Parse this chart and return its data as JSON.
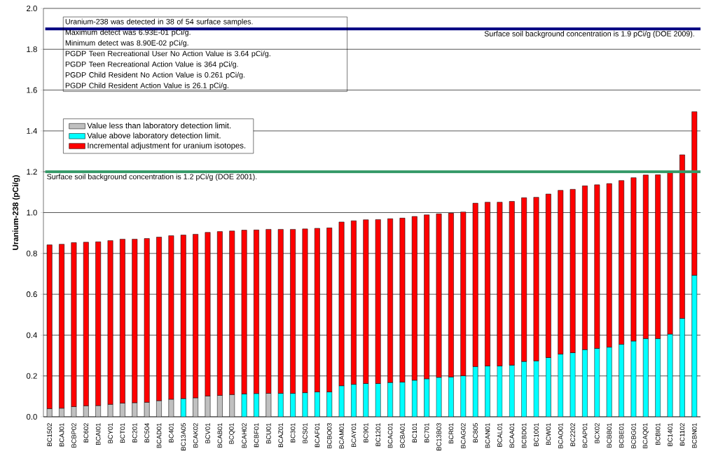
{
  "chart_data": {
    "type": "bar",
    "stacked": true,
    "ylabel": "Uranium-238 (pCi/g)",
    "categories": [
      "BC1502",
      "BCAJ01",
      "BCBP02",
      "BC602",
      "BCAI01",
      "BCY01",
      "BCT01",
      "BC201",
      "BC504",
      "BCAD01",
      "BC401",
      "BC13A05",
      "BCAK02",
      "BCV01",
      "BCAB01",
      "BCQ01",
      "BCAH02",
      "BCBF01",
      "BCU01",
      "BCAZ01",
      "BC301",
      "BCS01",
      "BCAF01",
      "BCBO03",
      "BCAM01",
      "BCAY01",
      "BC901",
      "BC1201",
      "BCAC01",
      "BCBA01",
      "BC101",
      "BC701",
      "BC13B03",
      "BCR01",
      "BCAG02",
      "BC805",
      "BCAN01",
      "BCAL01",
      "BCAA01",
      "BCBD01",
      "BC1001",
      "BCW01",
      "BCAO01",
      "BC2202",
      "BCAP01",
      "BCX02",
      "BCBB01",
      "BCBE01",
      "BCBG01",
      "BCAQ01",
      "BCBI01",
      "BC1401",
      "BC1102",
      "BCBN01"
    ],
    "series": [
      {
        "name": "Value less than laboratory detection limit.",
        "color": "#c0c0c0",
        "values": [
          0.04,
          0.042,
          0.05,
          0.054,
          0.055,
          0.061,
          0.067,
          0.069,
          0.071,
          0.079,
          0.086,
          null,
          0.093,
          0.102,
          0.105,
          0.109,
          null,
          null,
          0.115,
          null,
          null,
          null,
          null,
          null,
          null,
          null,
          null,
          null,
          null,
          null,
          null,
          null,
          null,
          null,
          null,
          null,
          null,
          null,
          null,
          null,
          null,
          null,
          null,
          null,
          null,
          null,
          null,
          null,
          null,
          null,
          null,
          null,
          null,
          null
        ]
      },
      {
        "name": "Value above laboratory detection limit.",
        "color": "#00ffff",
        "values": [
          null,
          null,
          null,
          null,
          null,
          null,
          null,
          null,
          null,
          null,
          null,
          0.089,
          null,
          null,
          null,
          null,
          0.112,
          0.114,
          null,
          0.115,
          0.115,
          0.118,
          0.122,
          0.122,
          0.152,
          0.159,
          0.163,
          0.163,
          0.168,
          0.17,
          0.179,
          0.186,
          0.193,
          0.195,
          0.201,
          0.246,
          0.249,
          0.249,
          0.253,
          0.271,
          0.274,
          0.29,
          0.307,
          0.314,
          0.329,
          0.335,
          0.341,
          0.355,
          0.371,
          0.383,
          0.383,
          0.405,
          0.482,
          0.693
        ]
      },
      {
        "name": "Incremental adjustment for uranium isotopes.",
        "color": "#ff0000",
        "values": [
          0.802,
          0.803,
          0.803,
          0.801,
          0.802,
          0.802,
          0.803,
          0.801,
          0.802,
          0.801,
          0.801,
          0.801,
          0.801,
          0.801,
          0.802,
          0.801,
          0.802,
          0.801,
          0.803,
          0.803,
          0.803,
          0.802,
          0.801,
          0.803,
          0.802,
          0.801,
          0.802,
          0.803,
          0.802,
          0.803,
          0.802,
          0.803,
          0.801,
          0.802,
          0.802,
          0.8,
          0.802,
          0.802,
          0.802,
          0.802,
          0.801,
          0.801,
          0.802,
          0.8,
          0.802,
          0.801,
          0.801,
          0.802,
          0.8,
          0.801,
          0.802,
          0.792,
          0.801,
          0.801
        ]
      }
    ],
    "ylim": [
      0,
      2.0
    ],
    "yticks": [
      {
        "value": 0,
        "label": "0.0"
      },
      {
        "value": 0.2,
        "label": "0.2"
      },
      {
        "value": 0.4,
        "label": "0.4"
      },
      {
        "value": 0.6,
        "label": "0.6"
      },
      {
        "value": 0.8,
        "label": "0.8"
      },
      {
        "value": 1.0,
        "label": "1.0"
      },
      {
        "value": 1.2,
        "label": "1.2"
      },
      {
        "value": 1.4,
        "label": "1.4"
      },
      {
        "value": 1.6,
        "label": "1.6"
      },
      {
        "value": 1.8,
        "label": "1.8"
      },
      {
        "value": 2.0,
        "label": "2.0"
      }
    ],
    "grid": "y",
    "legend": "top left",
    "ref_lines": [
      {
        "axis": "y",
        "value": 1.9,
        "label": "Surface soil background concentration is 1.9 pCi/g (DOE 2009).",
        "color": "#000080"
      },
      {
        "axis": "y",
        "value": 1.2,
        "label": "Surface soil background concentration is 1.2 pCi/g (DOE 2001).",
        "color": "#339966"
      }
    ],
    "annotations": [
      "Uranium-238 was detected in 38 of 54 surface samples.",
      "Maximum detect was 6.93E-01 pCi/g.",
      "Minimum detect was 8.90E-02 pCi/g.",
      "PGDP Teen Recreational User No Action Value is 3.64 pCi/g.",
      "PGDP Teen Recreational Action Value is 364 pCi/g.",
      "PGDP Child Resident No Action Value is 0.261 pCi/g.",
      "PGDP Child Resident Action Value is  26.1 pCi/g."
    ]
  }
}
